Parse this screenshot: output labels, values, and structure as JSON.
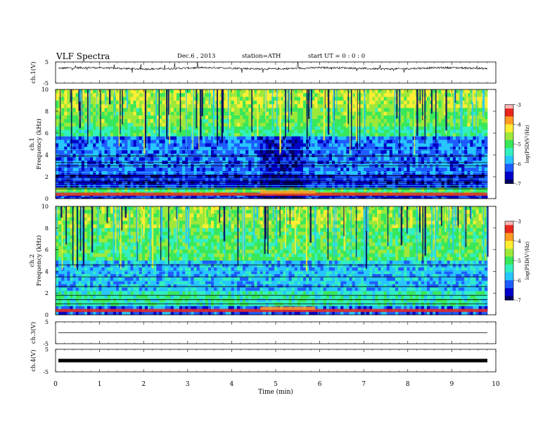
{
  "header": {
    "title": "VLF Spectra",
    "date": "Dec.6 , 2013",
    "station": "station=ATH",
    "start": "start UT = 0 : 0 : 0"
  },
  "colors": {
    "colormap": [
      "#000060",
      "#0000c8",
      "#1f5cff",
      "#27c6ff",
      "#33f0c0",
      "#39e85a",
      "#9ee83a",
      "#ffee33",
      "#ff9a22",
      "#e8261e",
      "#f6b6b6"
    ]
  },
  "chart_data": [
    {
      "type": "line",
      "panel": "ch1-waveform",
      "ylabel": "ch.1(V)",
      "yticks": [
        "5",
        "-5"
      ],
      "ylim": [
        -5,
        5
      ],
      "xlim": [
        0,
        10
      ],
      "description_level": "noisy baseline near +2 V with sparse spikes",
      "baseline": 2
    },
    {
      "type": "heatmap",
      "panel": "ch1-spectrogram",
      "ylabel": "Frequency (kHz)",
      "ylabel2": "ch.1",
      "yticks": [
        "0",
        "2",
        "4",
        "6",
        "8",
        "10"
      ],
      "ylim": [
        0,
        10
      ],
      "xlim": [
        0,
        9.8
      ],
      "colorbar": {
        "label": "log(PSD(V²/Hz)",
        "ticks": [
          "-3",
          "-4",
          "-5",
          "-6",
          "-7"
        ],
        "range": [
          -7,
          -3
        ]
      }
    },
    {
      "type": "heatmap",
      "panel": "ch2-spectrogram",
      "ylabel": "Frequency (kHz)",
      "ylabel2": "ch.2",
      "yticks": [
        "0",
        "2",
        "4",
        "6",
        "8",
        "10"
      ],
      "ylim": [
        0,
        10
      ],
      "xlim": [
        0,
        9.8
      ],
      "colorbar": {
        "label": "log(PSD(V²/Hz)",
        "ticks": [
          "-3",
          "-4",
          "-5",
          "-6",
          "-7"
        ],
        "range": [
          -7,
          -3
        ]
      }
    },
    {
      "type": "line",
      "panel": "ch3-waveform",
      "ylabel": "ch.3(V)",
      "yticks": [
        "5",
        "-5"
      ],
      "ylim": [
        -5,
        5
      ],
      "xlim": [
        0,
        10
      ],
      "baseline": 0
    },
    {
      "type": "line",
      "panel": "ch4-waveform",
      "ylabel": "ch.4(V)",
      "yticks": [
        "5",
        "-5"
      ],
      "ylim": [
        -5,
        5
      ],
      "xlim": [
        0,
        10
      ],
      "baseline": 0
    }
  ],
  "xaxis": {
    "label": "Time (min)",
    "ticks": [
      "0",
      "1",
      "2",
      "3",
      "4",
      "5",
      "6",
      "7",
      "8",
      "9",
      "10"
    ],
    "range": [
      0,
      10
    ]
  }
}
